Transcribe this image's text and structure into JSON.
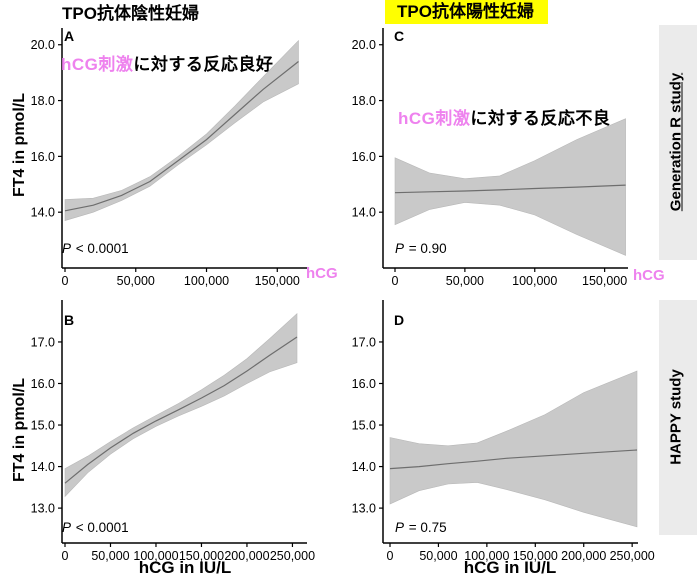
{
  "figure": {
    "col_titles": [
      {
        "text": "TPO抗体陰性妊婦",
        "highlight": false
      },
      {
        "text": "TPO抗体陽性妊婦",
        "highlight": true
      }
    ],
    "row_labels": [
      {
        "text": "Generation R study",
        "underline": true
      },
      {
        "text": "HAPPY study",
        "underline": false
      }
    ],
    "colors": {
      "pink": "#EE82EE",
      "yellow": "#FFFF00",
      "band": "#C9C9C9",
      "line": "#6E6E6E",
      "strip_bg": "#EBEBEB",
      "axis": "#000000"
    }
  },
  "chart_data": [
    {
      "type": "line",
      "panel": "A",
      "letter": "A",
      "study": "Generation R study",
      "group": "TPO抗体陰性妊婦",
      "annotation": {
        "highlight_text": "hCG刺激",
        "rest_text": "に対する反応良好"
      },
      "p_prefix": "P",
      "p_rest": " < 0.0001",
      "xlabel": "hCG",
      "ylabel": "FT4 in pmol/L",
      "xlim": [
        0,
        171000
      ],
      "ylim": [
        12.0,
        20.6
      ],
      "xticks": [
        0,
        50000,
        100000,
        150000
      ],
      "xtick_labels": [
        "0",
        "50,000",
        "100,000",
        "150,000"
      ],
      "yticks": [
        20,
        18,
        16,
        14
      ],
      "ytick_labels": [
        "20.0",
        "18.0",
        "16.0",
        "14.0"
      ],
      "grid": false,
      "legend": "none",
      "series": [
        {
          "name": "fitted FT4",
          "x": [
            0,
            20000,
            40000,
            60000,
            80000,
            100000,
            120000,
            140000,
            165000
          ],
          "y": [
            14.05,
            14.25,
            14.6,
            15.1,
            15.85,
            16.6,
            17.5,
            18.4,
            19.4
          ]
        },
        {
          "name": "95% CI lower",
          "x": [
            0,
            20000,
            40000,
            60000,
            80000,
            100000,
            120000,
            140000,
            165000
          ],
          "y": [
            13.7,
            14.0,
            14.42,
            14.93,
            15.7,
            16.42,
            17.2,
            17.95,
            18.6
          ]
        },
        {
          "name": "95% CI upper",
          "x": [
            0,
            20000,
            40000,
            60000,
            80000,
            100000,
            120000,
            140000,
            165000
          ],
          "y": [
            14.45,
            14.5,
            14.78,
            15.27,
            16.0,
            16.8,
            17.8,
            18.85,
            20.15
          ]
        }
      ]
    },
    {
      "type": "line",
      "panel": "C",
      "letter": "C",
      "study": "Generation R study",
      "group": "TPO抗体陽性妊婦",
      "annotation": {
        "highlight_text": "hCG刺激",
        "rest_text": "に対する反応不良"
      },
      "p_prefix": "P",
      "p_rest": " = 0.90",
      "xlabel": "hCG",
      "ylabel": "FT4 in pmol/L",
      "xlim": [
        0,
        166000
      ],
      "ylim": [
        12.0,
        20.6
      ],
      "xticks": [
        0,
        50000,
        100000,
        150000
      ],
      "xtick_labels": [
        "0",
        "50,000",
        "100,000",
        "150,000"
      ],
      "yticks": [
        20,
        18,
        16,
        14
      ],
      "ytick_labels": [
        "20.0",
        "18.0",
        "16.0",
        "14.0"
      ],
      "grid": false,
      "legend": "none",
      "series": [
        {
          "name": "fitted FT4",
          "x": [
            0,
            25000,
            50000,
            75000,
            100000,
            130000,
            165000
          ],
          "y": [
            14.7,
            14.73,
            14.76,
            14.8,
            14.85,
            14.9,
            14.97
          ]
        },
        {
          "name": "95% CI lower",
          "x": [
            0,
            25000,
            50000,
            75000,
            100000,
            130000,
            165000
          ],
          "y": [
            13.55,
            14.1,
            14.35,
            14.25,
            13.9,
            13.2,
            12.45
          ]
        },
        {
          "name": "95% CI upper",
          "x": [
            0,
            25000,
            50000,
            75000,
            100000,
            130000,
            165000
          ],
          "y": [
            15.95,
            15.4,
            15.2,
            15.3,
            15.85,
            16.6,
            17.35
          ]
        }
      ]
    },
    {
      "type": "line",
      "panel": "B",
      "letter": "B",
      "study": "HAPPY study",
      "group": "TPO抗体陰性妊婦",
      "annotation": null,
      "p_prefix": "P",
      "p_rest": " < 0.0001",
      "xlabel": "hCG in IU/L",
      "ylabel": "FT4 in pmol/L",
      "xlim": [
        0,
        266000
      ],
      "ylim": [
        12.16,
        18.01
      ],
      "xticks": [
        0,
        50000,
        100000,
        150000,
        200000,
        250000
      ],
      "xtick_labels": [
        "0",
        "50,000",
        "100,000",
        "150,000",
        "200,000",
        "250,000"
      ],
      "yticks": [
        17,
        16,
        15,
        14,
        13
      ],
      "ytick_labels": [
        "17.0",
        "16.0",
        "15.0",
        "14.0",
        "13.0"
      ],
      "grid": false,
      "legend": "none",
      "series": [
        {
          "name": "fitted FT4",
          "x": [
            0,
            25000,
            50000,
            75000,
            100000,
            125000,
            150000,
            175000,
            200000,
            225000,
            255000
          ],
          "y": [
            13.6,
            14.05,
            14.45,
            14.8,
            15.1,
            15.37,
            15.65,
            15.95,
            16.3,
            16.68,
            17.12
          ]
        },
        {
          "name": "95% CI lower",
          "x": [
            0,
            25000,
            50000,
            75000,
            100000,
            125000,
            150000,
            175000,
            200000,
            225000,
            255000
          ],
          "y": [
            13.28,
            13.85,
            14.3,
            14.67,
            14.97,
            15.22,
            15.45,
            15.7,
            16.0,
            16.28,
            16.5
          ]
        },
        {
          "name": "95% CI upper",
          "x": [
            0,
            25000,
            50000,
            75000,
            100000,
            125000,
            150000,
            175000,
            200000,
            225000,
            255000
          ],
          "y": [
            13.95,
            14.25,
            14.6,
            14.93,
            15.23,
            15.52,
            15.85,
            16.2,
            16.6,
            17.08,
            17.68
          ]
        }
      ]
    },
    {
      "type": "line",
      "panel": "D",
      "letter": "D",
      "study": "HAPPY study",
      "group": "TPO抗体陽性妊婦",
      "annotation": null,
      "p_prefix": "P",
      "p_rest": " = 0.75",
      "xlabel": "hCG in IU/L",
      "ylabel": "FT4 in pmol/L",
      "xlim": [
        0,
        255000
      ],
      "ylim": [
        12.16,
        18.01
      ],
      "xticks": [
        0,
        50000,
        100000,
        150000,
        200000,
        250000
      ],
      "xtick_labels": [
        "0",
        "50,000",
        "100,000",
        "150,000",
        "200,000",
        "250,000"
      ],
      "yticks": [
        17,
        16,
        15,
        14,
        13
      ],
      "ytick_labels": [
        "17.0",
        "16.0",
        "15.0",
        "14.0",
        "13.0"
      ],
      "grid": false,
      "legend": "none",
      "series": [
        {
          "name": "fitted FT4",
          "x": [
            0,
            30000,
            60000,
            90000,
            120000,
            160000,
            200000,
            255000
          ],
          "y": [
            13.95,
            14.0,
            14.07,
            14.13,
            14.2,
            14.26,
            14.32,
            14.4
          ]
        },
        {
          "name": "95% CI lower",
          "x": [
            0,
            30000,
            60000,
            90000,
            120000,
            160000,
            200000,
            255000
          ],
          "y": [
            13.1,
            13.42,
            13.58,
            13.62,
            13.45,
            13.2,
            12.9,
            12.55
          ]
        },
        {
          "name": "95% CI upper",
          "x": [
            0,
            30000,
            60000,
            90000,
            120000,
            160000,
            200000,
            255000
          ],
          "y": [
            14.7,
            14.55,
            14.5,
            14.57,
            14.85,
            15.25,
            15.78,
            16.3
          ]
        }
      ]
    }
  ]
}
